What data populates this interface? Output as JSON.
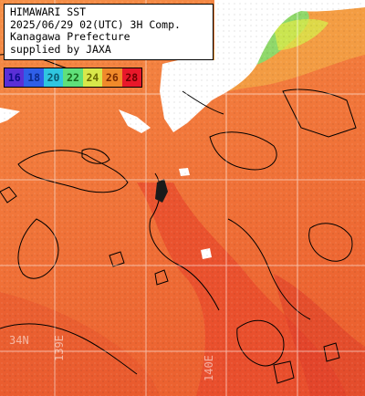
{
  "title_lines": [
    "HIMAWARI SST",
    "2025/06/29 02(UTC) 3H Comp.",
    "Kanagawa Prefecture",
    "supplied by JAXA"
  ],
  "legend": [
    {
      "label": "16",
      "color": "#5a2fd6",
      "text_color": "#0a0a8a"
    },
    {
      "label": "18",
      "color": "#2f5fe8",
      "text_color": "#0b2a8a"
    },
    {
      "label": "20",
      "color": "#2fc6e0",
      "text_color": "#0a5a70"
    },
    {
      "label": "22",
      "color": "#5fe07a",
      "text_color": "#1a6a1a"
    },
    {
      "label": "24",
      "color": "#d8e84a",
      "text_color": "#6a6a00"
    },
    {
      "label": "26",
      "color": "#f08a2a",
      "text_color": "#7a2a00"
    },
    {
      "label": "28",
      "color": "#e8182a",
      "text_color": "#6a0000"
    }
  ],
  "axis_labels": {
    "lat_label": "34N",
    "lon_label_1": "139E",
    "lon_label_2": "140E"
  },
  "colors": {
    "land": "#ffffff",
    "warm_sea": "#f07a3a",
    "hot_sea": "#e6402a",
    "cool_coastal": "#f6b24a",
    "coastal_green": "#8fd86a",
    "grid": "#ffffff",
    "contour": "#000000"
  }
}
